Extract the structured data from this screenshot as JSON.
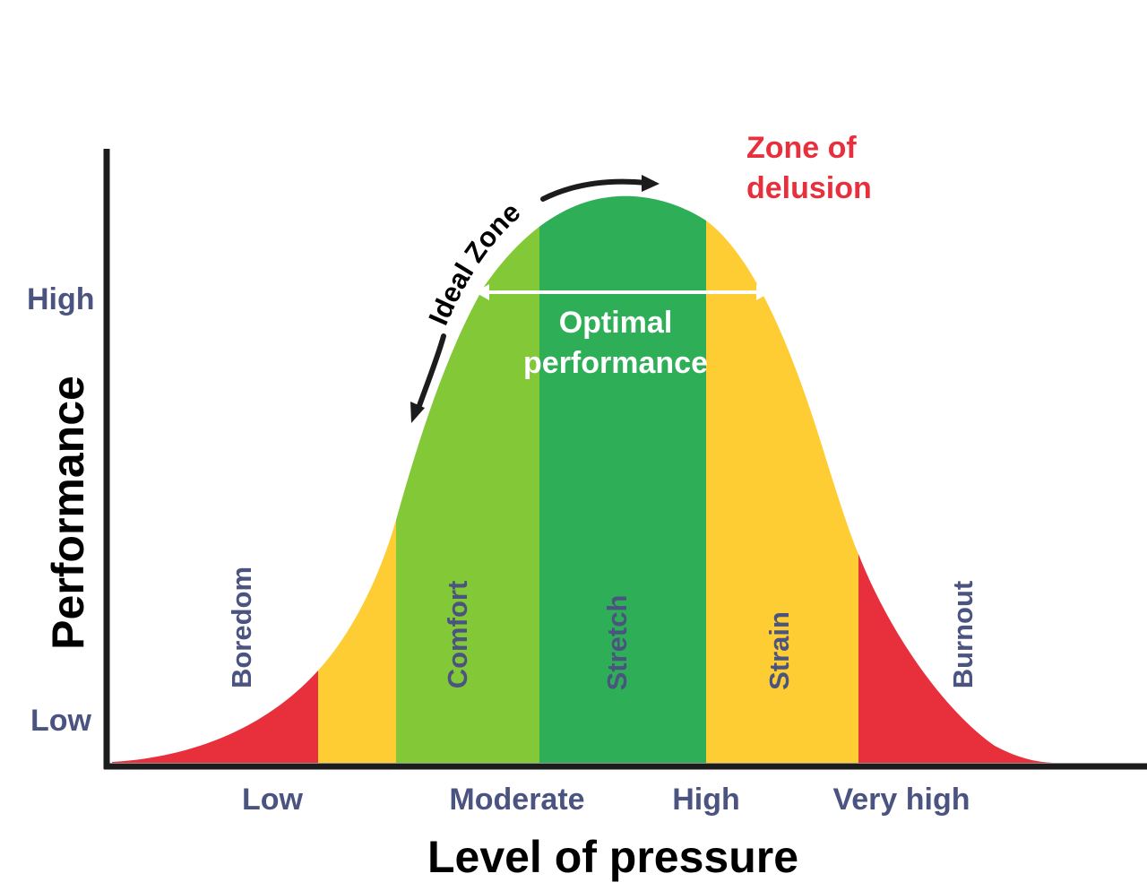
{
  "axes": {
    "y_title": "Performance",
    "x_title": "Level of pressure",
    "y_ticks": [
      "High",
      "Low"
    ],
    "x_ticks": [
      "Low",
      "Moderate",
      "High",
      "Very high"
    ]
  },
  "zones": [
    {
      "label": "Boredom",
      "color": "#e8303d"
    },
    {
      "label": "",
      "color": "#fdcd33"
    },
    {
      "label": "Comfort",
      "color": "#82c837"
    },
    {
      "label": "Stretch",
      "color": "#2eae57"
    },
    {
      "label": "Strain",
      "color": "#fdcd33"
    },
    {
      "label": "Burnout",
      "color": "#e8303d"
    }
  ],
  "annotations": {
    "ideal_zone": "Ideal Zone",
    "optimal_line1": "Optimal",
    "optimal_line2": "performance",
    "delusion_line1": "Zone of",
    "delusion_line2": "delusion"
  },
  "colors": {
    "tick_text": "#4b5480",
    "zone_text": "#4b5480",
    "axis": "#1c1c1c",
    "delusion": "#e8303d",
    "optimal_text": "#ffffff"
  }
}
